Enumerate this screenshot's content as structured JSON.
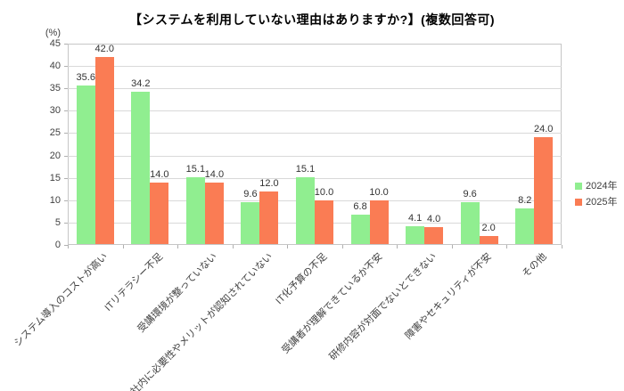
{
  "chart_data": {
    "type": "bar",
    "title": "【システムを利用していない理由はありますか?】(複数回答可)",
    "categories": [
      "システム導入のコストが高い",
      "ITリテラシー不足",
      "受講環境が整っていない",
      "社内に必要性やメリットが認知されていない",
      "IT化予算の不足",
      "受講者が理解できているか不安",
      "研修内容が対面でないとできない",
      "障害やセキュリティが不安",
      "その他"
    ],
    "series": [
      {
        "name": "2024年",
        "color": "#90EE90",
        "values": [
          35.6,
          34.2,
          15.1,
          9.6,
          15.1,
          6.8,
          4.1,
          9.6,
          8.2
        ]
      },
      {
        "name": "2025年",
        "color": "#FA7C54",
        "values": [
          42.0,
          14.0,
          14.0,
          12.0,
          10.0,
          10.0,
          4.0,
          2.0,
          24.0
        ]
      }
    ],
    "ylabel": "(%)",
    "ylim": [
      0,
      45
    ],
    "yticks": [
      0,
      5,
      10,
      15,
      20,
      25,
      30,
      35,
      40,
      45
    ],
    "grid": true,
    "legend_position": "right",
    "value_label_decimals": 1
  },
  "colors": {
    "gridline": "#d9d9d9",
    "plot_border": "#c6c6c6",
    "tick_mark": "#b0b0b0",
    "text": "#404040",
    "title_text": "#000000"
  }
}
